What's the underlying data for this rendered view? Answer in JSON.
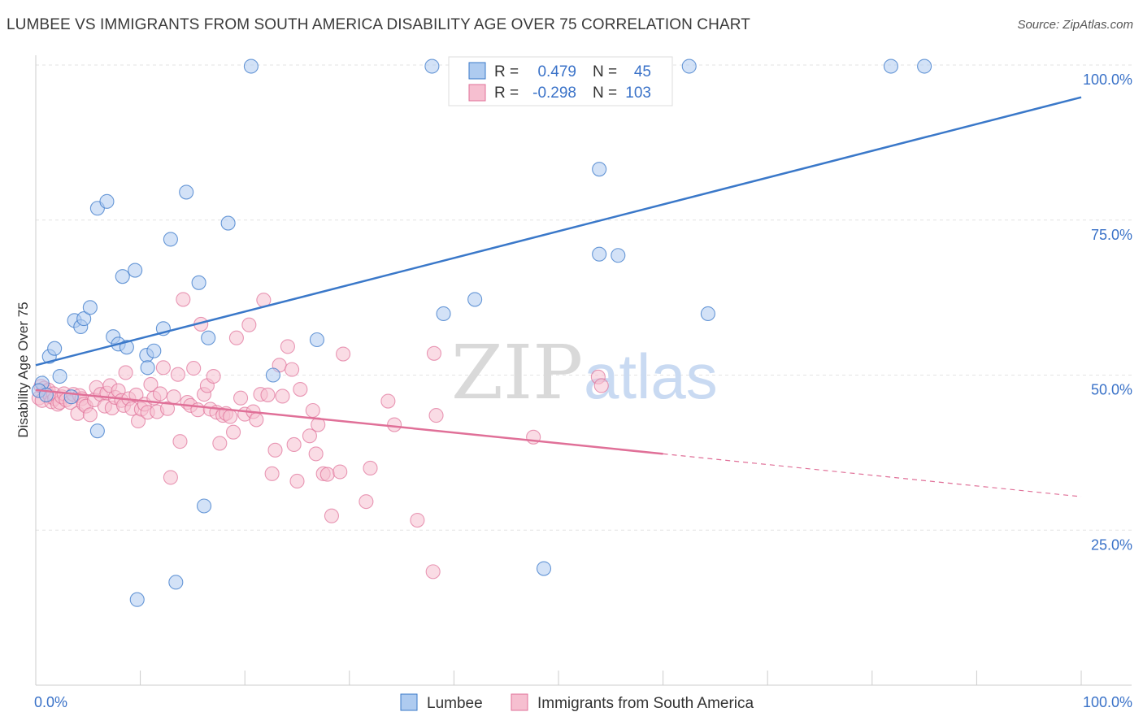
{
  "title": "LUMBEE VS IMMIGRANTS FROM SOUTH AMERICA DISABILITY AGE OVER 75 CORRELATION CHART",
  "source": "Source: ZipAtlas.com",
  "watermark": {
    "zip": "ZIP",
    "atlas": "atlas"
  },
  "colors": {
    "lumbee": "#3a78c9",
    "lumbee_fill": "#aecbf0",
    "immigrants": "#e07098",
    "immigrants_fill": "#f6bfd0",
    "tick": "#3a72c8"
  },
  "legend": {
    "lumbee": {
      "r_label": "R =",
      "r_value": "0.479",
      "n_label": "N =",
      "n_value": "45"
    },
    "immigrants": {
      "r_label": "R =",
      "r_value": "-0.298",
      "n_label": "N =",
      "n_value": "103"
    }
  },
  "chart_data": {
    "type": "scatter",
    "title": "LUMBEE VS IMMIGRANTS FROM SOUTH AMERICA DISABILITY AGE OVER 75 CORRELATION CHART",
    "xlabel": "",
    "ylabel": "Disability Age Over 75",
    "xlim": [
      0,
      100
    ],
    "ylim": [
      0,
      100
    ],
    "x_tick_labels": [
      "0.0%",
      "100.0%"
    ],
    "y_tick_labels": [
      "25.0%",
      "50.0%",
      "75.0%",
      "100.0%"
    ],
    "y_ticks": [
      25,
      50,
      75,
      100
    ],
    "grid": true,
    "legend_position": "top-center",
    "series": [
      {
        "name": "Lumbee",
        "r": 0.479,
        "n": 45,
        "trend": {
          "x": [
            0,
            100
          ],
          "y": [
            51.6,
            94.8
          ]
        },
        "points": [
          [
            0.6,
            48.7
          ],
          [
            1.3,
            53.0
          ],
          [
            1.8,
            54.3
          ],
          [
            2.3,
            49.8
          ],
          [
            3.4,
            46.5
          ],
          [
            3.7,
            58.8
          ],
          [
            4.3,
            57.8
          ],
          [
            4.6,
            59.1
          ],
          [
            5.2,
            60.9
          ],
          [
            5.9,
            41.0
          ],
          [
            5.9,
            76.9
          ],
          [
            6.8,
            78.0
          ],
          [
            7.4,
            56.2
          ],
          [
            7.9,
            55.0
          ],
          [
            8.3,
            65.9
          ],
          [
            8.7,
            54.5
          ],
          [
            9.5,
            66.9
          ],
          [
            9.7,
            13.8
          ],
          [
            10.6,
            53.2
          ],
          [
            10.7,
            51.2
          ],
          [
            11.3,
            53.9
          ],
          [
            12.2,
            57.5
          ],
          [
            12.9,
            71.9
          ],
          [
            13.4,
            16.6
          ],
          [
            14.4,
            79.5
          ],
          [
            15.6,
            64.9
          ],
          [
            16.1,
            28.9
          ],
          [
            16.5,
            56.0
          ],
          [
            18.4,
            74.5
          ],
          [
            20.6,
            99.8
          ],
          [
            22.7,
            50.0
          ],
          [
            26.9,
            55.7
          ],
          [
            37.9,
            99.8
          ],
          [
            39.0,
            59.9
          ],
          [
            42.0,
            62.2
          ],
          [
            48.6,
            18.8
          ],
          [
            53.9,
            83.2
          ],
          [
            53.9,
            69.5
          ],
          [
            55.7,
            69.3
          ],
          [
            62.5,
            99.8
          ],
          [
            64.3,
            59.9
          ],
          [
            81.8,
            99.8
          ],
          [
            85.0,
            99.8
          ],
          [
            0.3,
            47.5
          ],
          [
            1.0,
            46.8
          ]
        ]
      },
      {
        "name": "Immigrants from South America",
        "r": -0.298,
        "n": 103,
        "trend": {
          "x": [
            0,
            60
          ],
          "y": [
            47.6,
            37.3
          ],
          "dashed_to": {
            "x": 100,
            "y": 30.4
          }
        },
        "points": [
          [
            0.3,
            46.3
          ],
          [
            0.5,
            48.2
          ],
          [
            0.6,
            45.9
          ],
          [
            0.8,
            47.9
          ],
          [
            1.0,
            47.3
          ],
          [
            1.2,
            47.6
          ],
          [
            1.4,
            46.5
          ],
          [
            1.5,
            45.7
          ],
          [
            1.7,
            47.0
          ],
          [
            1.8,
            46.2
          ],
          [
            2.1,
            45.3
          ],
          [
            2.3,
            45.6
          ],
          [
            2.5,
            46.5
          ],
          [
            2.7,
            47.0
          ],
          [
            2.9,
            46.0
          ],
          [
            3.3,
            45.6
          ],
          [
            3.6,
            46.9
          ],
          [
            4.0,
            43.8
          ],
          [
            4.2,
            46.7
          ],
          [
            4.4,
            46.2
          ],
          [
            4.6,
            45.3
          ],
          [
            4.8,
            45.0
          ],
          [
            5.2,
            43.6
          ],
          [
            5.6,
            46.0
          ],
          [
            5.8,
            48.0
          ],
          [
            6.2,
            46.9
          ],
          [
            6.6,
            45.0
          ],
          [
            6.8,
            47.1
          ],
          [
            7.1,
            48.3
          ],
          [
            7.3,
            44.7
          ],
          [
            7.6,
            46.4
          ],
          [
            7.9,
            47.5
          ],
          [
            8.2,
            45.9
          ],
          [
            8.4,
            45.1
          ],
          [
            8.6,
            50.4
          ],
          [
            8.9,
            46.2
          ],
          [
            9.2,
            44.6
          ],
          [
            9.6,
            46.8
          ],
          [
            9.8,
            42.6
          ],
          [
            10.1,
            44.5
          ],
          [
            10.4,
            45.3
          ],
          [
            10.7,
            44.0
          ],
          [
            11.0,
            48.5
          ],
          [
            11.3,
            46.3
          ],
          [
            11.6,
            44.1
          ],
          [
            11.9,
            47.0
          ],
          [
            12.2,
            51.2
          ],
          [
            12.6,
            44.6
          ],
          [
            12.9,
            33.5
          ],
          [
            13.2,
            46.5
          ],
          [
            13.6,
            50.1
          ],
          [
            13.8,
            39.3
          ],
          [
            14.1,
            62.2
          ],
          [
            14.5,
            45.6
          ],
          [
            14.8,
            45.1
          ],
          [
            15.1,
            51.1
          ],
          [
            15.5,
            44.4
          ],
          [
            15.8,
            58.2
          ],
          [
            16.1,
            46.9
          ],
          [
            16.4,
            48.3
          ],
          [
            16.7,
            44.5
          ],
          [
            17.0,
            49.8
          ],
          [
            17.3,
            44.0
          ],
          [
            17.6,
            39.0
          ],
          [
            17.9,
            43.5
          ],
          [
            18.2,
            43.8
          ],
          [
            18.6,
            43.3
          ],
          [
            18.9,
            40.8
          ],
          [
            19.2,
            56.0
          ],
          [
            19.6,
            46.3
          ],
          [
            20.0,
            43.7
          ],
          [
            20.4,
            58.1
          ],
          [
            20.8,
            44.1
          ],
          [
            21.1,
            42.8
          ],
          [
            21.5,
            46.9
          ],
          [
            21.8,
            62.1
          ],
          [
            22.2,
            46.8
          ],
          [
            22.6,
            34.1
          ],
          [
            22.9,
            37.9
          ],
          [
            23.3,
            51.6
          ],
          [
            23.6,
            46.6
          ],
          [
            24.1,
            54.6
          ],
          [
            24.5,
            50.9
          ],
          [
            24.7,
            38.8
          ],
          [
            25.0,
            32.9
          ],
          [
            25.3,
            47.7
          ],
          [
            26.2,
            40.2
          ],
          [
            26.5,
            44.3
          ],
          [
            26.8,
            37.3
          ],
          [
            27.0,
            42.0
          ],
          [
            27.5,
            34.1
          ],
          [
            27.9,
            34.0
          ],
          [
            28.3,
            27.3
          ],
          [
            29.1,
            34.4
          ],
          [
            29.4,
            53.4
          ],
          [
            31.6,
            29.6
          ],
          [
            32.0,
            35.0
          ],
          [
            33.7,
            45.8
          ],
          [
            34.3,
            42.0
          ],
          [
            36.5,
            26.6
          ],
          [
            38.0,
            18.3
          ],
          [
            38.1,
            53.5
          ],
          [
            38.3,
            43.5
          ]
        ]
      }
    ],
    "extra_immigrant_points": [
      [
        47.6,
        40.0
      ],
      [
        53.8,
        49.7
      ],
      [
        54.1,
        48.3
      ]
    ]
  },
  "bottom_legend": {
    "lumbee": "Lumbee",
    "immigrants": "Immigrants from South America"
  }
}
